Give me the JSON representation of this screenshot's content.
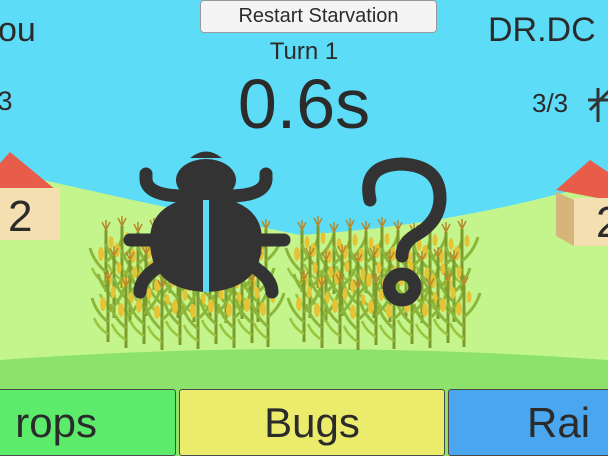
{
  "game": {
    "restart_label": "Restart Starvation",
    "turn": "Turn 1",
    "timer": "0.6s",
    "player": {
      "name": "ou",
      "count": "/3",
      "house_value": "2"
    },
    "opponent": {
      "name": "DR.DC",
      "count": "3/3",
      "house_value": "2"
    }
  },
  "choices": {
    "crops": "rops",
    "bugs": "Bugs",
    "rain": "Rai"
  },
  "icons": {
    "player_move": "bug-icon",
    "opponent_move": "question-mark-icon",
    "opponent_status": "sun-icon"
  },
  "colors": {
    "sky": "#5ddcf7",
    "hill_far": "#c3f58c",
    "hill_near": "#8ce26a",
    "crops_button": "#5ceb6b",
    "bugs_button": "#ebeb6c",
    "rain_button": "#4aa6ee"
  }
}
